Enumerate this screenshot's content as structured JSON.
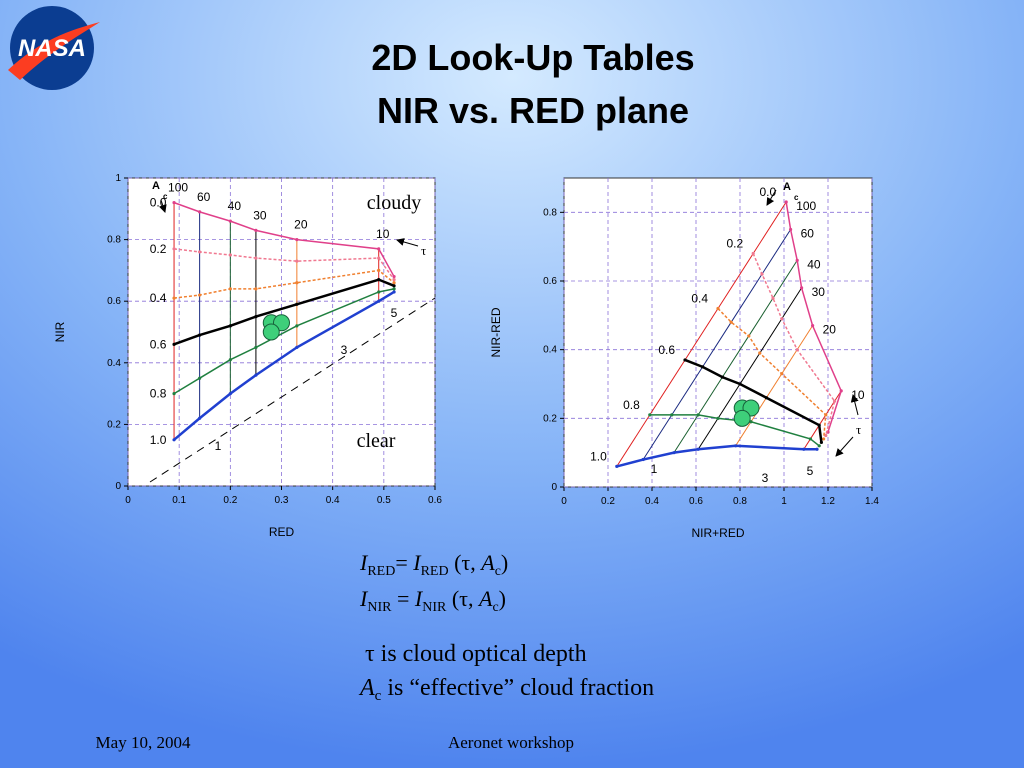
{
  "title_lines": [
    "2D Look-Up Tables",
    "NIR vs. RED plane"
  ],
  "logo": {
    "text": "NASA"
  },
  "chart_data": [
    {
      "type": "line",
      "x_label": "RED",
      "y_label": "NIR",
      "xlim": [
        0,
        0.6
      ],
      "ylim": [
        0,
        1
      ],
      "xticks": [
        0,
        0.1,
        0.2,
        0.3,
        0.4,
        0.5,
        0.6
      ],
      "yticks": [
        0,
        0.2,
        0.4,
        0.6,
        0.8,
        1
      ],
      "grid": true,
      "series": [
        {
          "name": "0.0",
          "color": "#e0408a",
          "x": [
            0.09,
            0.14,
            0.2,
            0.25,
            0.33,
            0.49,
            0.52
          ],
          "y": [
            0.92,
            0.89,
            0.86,
            0.83,
            0.8,
            0.77,
            0.68
          ]
        },
        {
          "name": "0.2",
          "color": "#f07890",
          "x": [
            0.09,
            0.14,
            0.2,
            0.25,
            0.33,
            0.49,
            0.52
          ],
          "y": [
            0.77,
            0.76,
            0.75,
            0.74,
            0.73,
            0.74,
            0.67
          ]
        },
        {
          "name": "0.4",
          "color": "#f08030",
          "x": [
            0.09,
            0.14,
            0.2,
            0.25,
            0.33,
            0.49,
            0.52
          ],
          "y": [
            0.61,
            0.62,
            0.64,
            0.64,
            0.66,
            0.7,
            0.66
          ]
        },
        {
          "name": "0.6",
          "color": "#000000",
          "x": [
            0.09,
            0.14,
            0.2,
            0.25,
            0.33,
            0.49,
            0.52
          ],
          "y": [
            0.46,
            0.49,
            0.52,
            0.55,
            0.59,
            0.67,
            0.65
          ]
        },
        {
          "name": "0.8",
          "color": "#208040",
          "x": [
            0.09,
            0.14,
            0.2,
            0.25,
            0.33,
            0.49,
            0.52
          ],
          "y": [
            0.3,
            0.35,
            0.41,
            0.45,
            0.52,
            0.63,
            0.64
          ]
        },
        {
          "name": "1.0",
          "color": "#2040d0",
          "x": [
            0.09,
            0.14,
            0.2,
            0.25,
            0.33,
            0.49,
            0.52
          ],
          "y": [
            0.15,
            0.22,
            0.3,
            0.36,
            0.45,
            0.6,
            0.63
          ]
        }
      ],
      "tau_labels": [
        100,
        60,
        40,
        30,
        20,
        10
      ],
      "tau_colors": [
        "#e02020",
        "#1a2a80",
        "#1a6030",
        "#000000",
        "#f08030",
        "#e02020"
      ],
      "tau_small": [
        5,
        3,
        1
      ],
      "observations": {
        "color": "#3ecf7a",
        "x": [
          0.28,
          0.3,
          0.28
        ],
        "y": [
          0.53,
          0.53,
          0.5
        ]
      },
      "annotations": {
        "ac": "A",
        "ac_sub": "c",
        "tau": "τ",
        "cloudy": "cloudy",
        "clear": "clear"
      }
    },
    {
      "type": "line",
      "x_label": "NIR+RED",
      "y_label": "NIR-RED",
      "xlim": [
        0,
        1.4
      ],
      "ylim": [
        0,
        0.9
      ],
      "xticks": [
        0,
        0.2,
        0.4,
        0.6,
        0.8,
        1,
        1.2,
        1.4
      ],
      "yticks": [
        0,
        0.2,
        0.4,
        0.6,
        0.8
      ],
      "grid": true,
      "series": [
        {
          "name": "0.0",
          "color": "#e0408a",
          "x": [
            1.01,
            1.03,
            1.06,
            1.08,
            1.13,
            1.26,
            1.2
          ],
          "y": [
            0.83,
            0.75,
            0.66,
            0.58,
            0.47,
            0.28,
            0.16
          ]
        },
        {
          "name": "0.2",
          "color": "#f07890",
          "x": [
            0.86,
            0.9,
            0.95,
            0.99,
            1.06,
            1.23,
            1.19
          ],
          "y": [
            0.68,
            0.62,
            0.55,
            0.49,
            0.4,
            0.25,
            0.15
          ]
        },
        {
          "name": "0.4",
          "color": "#f08030",
          "x": [
            0.7,
            0.76,
            0.84,
            0.89,
            0.99,
            1.19,
            1.18
          ],
          "y": [
            0.52,
            0.48,
            0.44,
            0.39,
            0.33,
            0.21,
            0.14
          ]
        },
        {
          "name": "0.6",
          "color": "#000000",
          "x": [
            0.55,
            0.63,
            0.72,
            0.8,
            0.92,
            1.16,
            1.17
          ],
          "y": [
            0.37,
            0.35,
            0.32,
            0.3,
            0.26,
            0.18,
            0.13
          ]
        },
        {
          "name": "0.8",
          "color": "#208040",
          "x": [
            0.39,
            0.49,
            0.61,
            0.7,
            0.85,
            1.12,
            1.16
          ],
          "y": [
            0.21,
            0.21,
            0.21,
            0.2,
            0.19,
            0.14,
            0.12
          ]
        },
        {
          "name": "1.0",
          "color": "#2040d0",
          "x": [
            0.24,
            0.36,
            0.5,
            0.61,
            0.78,
            1.09,
            1.15
          ],
          "y": [
            0.06,
            0.08,
            0.1,
            0.11,
            0.12,
            0.11,
            0.11
          ]
        }
      ],
      "tau_labels": [
        100,
        60,
        40,
        30,
        20,
        10
      ],
      "tau_colors": [
        "#e02020",
        "#1a2a80",
        "#1a6030",
        "#000000",
        "#f08030",
        "#e02020"
      ],
      "tau_small": [
        5,
        3,
        1
      ],
      "observations": {
        "color": "#3ecf7a",
        "x": [
          0.81,
          0.85,
          0.81
        ],
        "y": [
          0.23,
          0.23,
          0.2
        ]
      },
      "annotations": {
        "ac": "A",
        "ac_sub": "c",
        "tau": "τ"
      }
    }
  ],
  "equations": [
    [
      "I",
      "RED",
      "= ",
      "I",
      "RED",
      " (τ, ",
      "A",
      "c",
      ")"
    ],
    [
      "I",
      "NIR",
      " = ",
      "I",
      "NIR",
      " (τ, ",
      "A",
      "c",
      ")"
    ]
  ],
  "notes": {
    "tau": "τ is cloud optical depth",
    "ac": [
      "A",
      "c",
      " is “effective” cloud fraction"
    ]
  },
  "footer": {
    "date": "May 10, 2004",
    "event": "Aeronet workshop"
  }
}
